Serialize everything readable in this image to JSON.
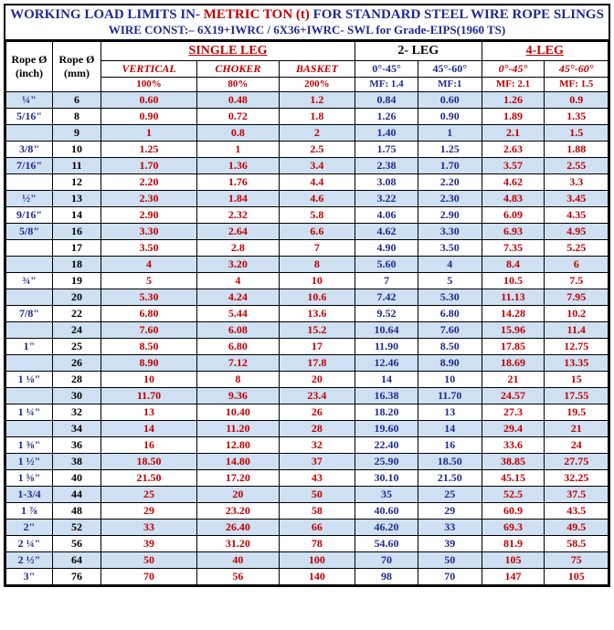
{
  "title_a": "WORKING LOAD LIMITS IN-",
  "title_b": " METRIC TON (t)",
  "title_c": "    FOR STANDARD STEEL WIRE ROPE SLINGS",
  "subtitle": "WIRE CONST:– 6X19+IWRC / 6X36+IWRC-  SWL  for Grade-EIPS(1960 TS)",
  "head": {
    "rope_in": "Rope Ø (inch)",
    "rope_mm": "Rope Ø (mm)",
    "single": "SINGLE LEG",
    "leg2": "2- LEG",
    "leg4": "4-LEG",
    "vertical": "VERTICAL",
    "choker": "CHOKER",
    "basket": "BASKET",
    "a0_45": "0°-45°",
    "a45_60": "45°-60°",
    "p100": "100%",
    "p80": "80%",
    "p200": "200%",
    "mf14": "MF: 1.4",
    "mf1": "MF:1",
    "mf21": "MF: 2.1",
    "mf15": "MF: 1.5"
  },
  "rows": [
    {
      "s": 1,
      "in": "¼\"",
      "mm": "6",
      "v": "0.60",
      "c": "0.48",
      "b": "1.2",
      "l2a": "0.84",
      "l2b": "0.60",
      "l4a": "1.26",
      "l4b": "0.9"
    },
    {
      "s": 0,
      "in": "5/16\"",
      "mm": "8",
      "v": "0.90",
      "c": "0.72",
      "b": "1.8",
      "l2a": "1.26",
      "l2b": "0.90",
      "l4a": "1.89",
      "l4b": "1.35"
    },
    {
      "s": 1,
      "in": "",
      "mm": "9",
      "v": "1",
      "c": "0.8",
      "b": "2",
      "l2a": "1.40",
      "l2b": "1",
      "l4a": "2.1",
      "l4b": "1.5"
    },
    {
      "s": 0,
      "in": "3/8\"",
      "mm": "10",
      "v": "1.25",
      "c": "1",
      "b": "2.5",
      "l2a": "1.75",
      "l2b": "1.25",
      "l4a": "2.63",
      "l4b": "1.88"
    },
    {
      "s": 1,
      "in": "7/16\"",
      "mm": "11",
      "v": "1.70",
      "c": "1.36",
      "b": "3.4",
      "l2a": "2.38",
      "l2b": "1.70",
      "l4a": "3.57",
      "l4b": "2.55"
    },
    {
      "s": 0,
      "in": "",
      "mm": "12",
      "v": "2.20",
      "c": "1.76",
      "b": "4.4",
      "l2a": "3.08",
      "l2b": "2.20",
      "l4a": "4.62",
      "l4b": "3.3"
    },
    {
      "s": 1,
      "in": "½\"",
      "mm": "13",
      "v": "2.30",
      "c": "1.84",
      "b": "4.6",
      "l2a": "3.22",
      "l2b": "2.30",
      "l4a": "4.83",
      "l4b": "3.45"
    },
    {
      "s": 0,
      "in": "9/16\"",
      "mm": "14",
      "v": "2.90",
      "c": "2.32",
      "b": "5.8",
      "l2a": "4.06",
      "l2b": "2.90",
      "l4a": "6.09",
      "l4b": "4.35"
    },
    {
      "s": 1,
      "in": "5/8\"",
      "mm": "16",
      "v": "3.30",
      "c": "2.64",
      "b": "6.6",
      "l2a": "4.62",
      "l2b": "3.30",
      "l4a": "6.93",
      "l4b": "4.95"
    },
    {
      "s": 0,
      "in": "",
      "mm": "17",
      "v": "3.50",
      "c": "2.8",
      "b": "7",
      "l2a": "4.90",
      "l2b": "3.50",
      "l4a": "7.35",
      "l4b": "5.25"
    },
    {
      "s": 1,
      "in": "",
      "mm": "18",
      "v": "4",
      "c": "3.20",
      "b": "8",
      "l2a": "5.60",
      "l2b": "4",
      "l4a": "8.4",
      "l4b": "6"
    },
    {
      "s": 0,
      "in": "¾\"",
      "mm": "19",
      "v": "5",
      "c": "4",
      "b": "10",
      "l2a": "7",
      "l2b": "5",
      "l4a": "10.5",
      "l4b": "7.5"
    },
    {
      "s": 1,
      "in": "",
      "mm": "20",
      "v": "5.30",
      "c": "4.24",
      "b": "10.6",
      "l2a": "7.42",
      "l2b": "5.30",
      "l4a": "11.13",
      "l4b": "7.95"
    },
    {
      "s": 0,
      "in": "7/8\"",
      "mm": "22",
      "v": "6.80",
      "c": "5.44",
      "b": "13.6",
      "l2a": "9.52",
      "l2b": "6.80",
      "l4a": "14.28",
      "l4b": "10.2"
    },
    {
      "s": 1,
      "in": "",
      "mm": "24",
      "v": "7.60",
      "c": "6.08",
      "b": "15.2",
      "l2a": "10.64",
      "l2b": "7.60",
      "l4a": "15.96",
      "l4b": "11.4"
    },
    {
      "s": 0,
      "in": "1\"",
      "mm": "25",
      "v": "8.50",
      "c": "6.80",
      "b": "17",
      "l2a": "11.90",
      "l2b": "8.50",
      "l4a": "17.85",
      "l4b": "12.75"
    },
    {
      "s": 1,
      "in": "",
      "mm": "26",
      "v": "8.90",
      "c": "7.12",
      "b": "17.8",
      "l2a": "12.46",
      "l2b": "8.90",
      "l4a": "18.69",
      "l4b": "13.35"
    },
    {
      "s": 0,
      "in": "1 ⅛\"",
      "mm": "28",
      "v": "10",
      "c": "8",
      "b": "20",
      "l2a": "14",
      "l2b": "10",
      "l4a": "21",
      "l4b": "15"
    },
    {
      "s": 1,
      "in": "",
      "mm": "30",
      "v": "11.70",
      "c": "9.36",
      "b": "23.4",
      "l2a": "16.38",
      "l2b": "11.70",
      "l4a": "24.57",
      "l4b": "17.55"
    },
    {
      "s": 0,
      "in": "1 ¼\"",
      "mm": "32",
      "v": "13",
      "c": "10.40",
      "b": "26",
      "l2a": "18.20",
      "l2b": "13",
      "l4a": "27.3",
      "l4b": "19.5"
    },
    {
      "s": 1,
      "in": "",
      "mm": "34",
      "v": "14",
      "c": "11.20",
      "b": "28",
      "l2a": "19.60",
      "l2b": "14",
      "l4a": "29.4",
      "l4b": "21"
    },
    {
      "s": 0,
      "in": "1 ⅜\"",
      "mm": "36",
      "v": "16",
      "c": "12.80",
      "b": "32",
      "l2a": "22.40",
      "l2b": "16",
      "l4a": "33.6",
      "l4b": "24"
    },
    {
      "s": 1,
      "in": "1 ½\"",
      "mm": "38",
      "v": "18.50",
      "c": "14.80",
      "b": "37",
      "l2a": "25.90",
      "l2b": "18.50",
      "l4a": "38.85",
      "l4b": "27.75"
    },
    {
      "s": 0,
      "in": "1 ⅝\"",
      "mm": "40",
      "v": "21.50",
      "c": "17.20",
      "b": "43",
      "l2a": "30.10",
      "l2b": "21.50",
      "l4a": "45.15",
      "l4b": "32.25"
    },
    {
      "s": 1,
      "in": "1-3/4",
      "mm": "44",
      "v": "25",
      "c": "20",
      "b": "50",
      "l2a": "35",
      "l2b": "25",
      "l4a": "52.5",
      "l4b": "37.5"
    },
    {
      "s": 0,
      "in": "1 ⅞",
      "mm": "48",
      "v": "29",
      "c": "23.20",
      "b": "58",
      "l2a": "40.60",
      "l2b": "29",
      "l4a": "60.9",
      "l4b": "43.5"
    },
    {
      "s": 1,
      "in": "2\"",
      "mm": "52",
      "v": "33",
      "c": "26.40",
      "b": "66",
      "l2a": "46.20",
      "l2b": "33",
      "l4a": "69.3",
      "l4b": "49.5"
    },
    {
      "s": 0,
      "in": "2 ¼\"",
      "mm": "56",
      "v": "39",
      "c": "31.20",
      "b": "78",
      "l2a": "54.60",
      "l2b": "39",
      "l4a": "81.9",
      "l4b": "58.5"
    },
    {
      "s": 1,
      "in": "2 ½\"",
      "mm": "64",
      "v": "50",
      "c": "40",
      "b": "100",
      "l2a": "70",
      "l2b": "50",
      "l4a": "105",
      "l4b": "75"
    },
    {
      "s": 0,
      "in": "3\"",
      "mm": "76",
      "v": "70",
      "c": "56",
      "b": "140",
      "l2a": "98",
      "l2b": "70",
      "l4a": "147",
      "l4b": "105"
    }
  ]
}
